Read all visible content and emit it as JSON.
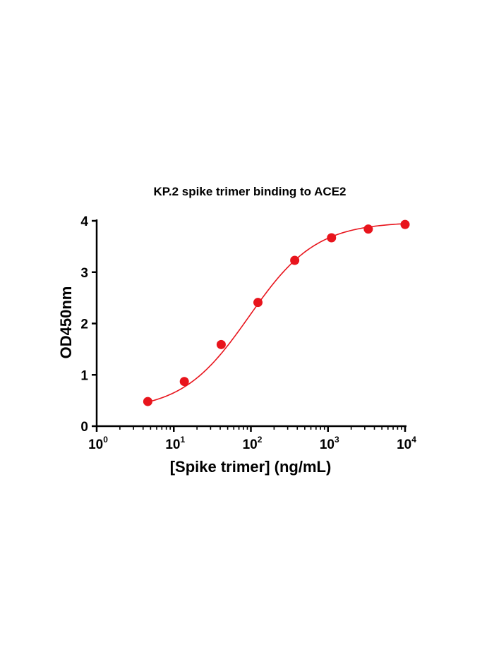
{
  "chart_data": {
    "type": "scatter",
    "title": "KP.2 spike trimer binding to ACE2",
    "xlabel": "[Spike trimer] (ng/mL)",
    "ylabel": "OD450nm",
    "xscale": "log",
    "xlim": [
      1,
      10000
    ],
    "ylim": [
      0,
      4
    ],
    "xticks": [
      {
        "base": "10",
        "exp": "0"
      },
      {
        "base": "10",
        "exp": "1"
      },
      {
        "base": "10",
        "exp": "2"
      },
      {
        "base": "10",
        "exp": "3"
      },
      {
        "base": "10",
        "exp": "4"
      }
    ],
    "yticks": [
      "0",
      "1",
      "2",
      "3",
      "4"
    ],
    "grid": false,
    "color": "#e8141c",
    "series": [
      {
        "x": [
          4.6,
          13.7,
          41.2,
          123.5,
          370.4,
          1111,
          3333,
          10000
        ],
        "y": [
          0.48,
          0.87,
          1.59,
          2.41,
          3.23,
          3.67,
          3.84,
          3.93
        ]
      }
    ],
    "fit_curve": {
      "bottom": 0.3,
      "top": 3.98,
      "ec50": 95,
      "hill": 1.0
    }
  }
}
